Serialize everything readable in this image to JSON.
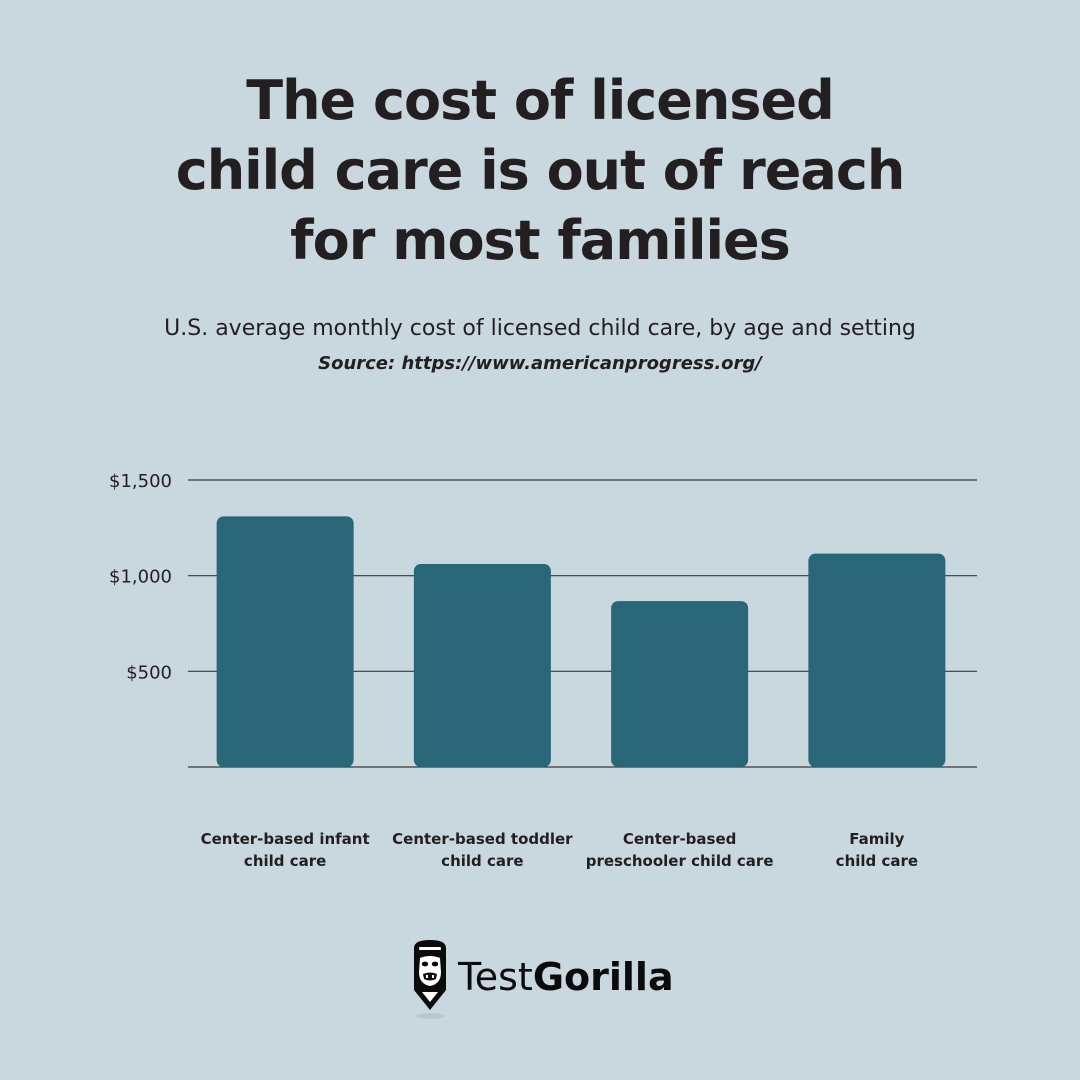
{
  "header": {
    "title_lines": [
      "The cost of licensed",
      "child care is out of reach",
      "for most families"
    ],
    "subtitle": "U.S. average monthly cost of licensed child care, by age and setting",
    "source": "Source: https://www.americanprogress.org/"
  },
  "chart_data": {
    "type": "bar",
    "title": "U.S. average monthly cost of licensed child care, by age and setting",
    "xlabel": "",
    "ylabel": "",
    "categories": [
      [
        "Center-based infant",
        "child care"
      ],
      [
        "Center-based toddler",
        "child care"
      ],
      [
        "Center-based",
        "preschooler child care"
      ],
      [
        "Family",
        "child care"
      ]
    ],
    "values": [
      1310,
      1061,
      867,
      1115
    ],
    "ylim": [
      0,
      1500
    ],
    "yticks": [
      {
        "value": 500,
        "label": "$500"
      },
      {
        "value": 1000,
        "label": "$1,000"
      },
      {
        "value": 1500,
        "label": "$1,500"
      }
    ],
    "grid": true,
    "legend": "none",
    "colors": {
      "bar": "#286678",
      "gridline": "#3a3a3a",
      "text": "#231f20"
    }
  },
  "brand": {
    "name_light": "Test",
    "name_bold": "Gorilla",
    "icon": "gorilla-icon"
  }
}
